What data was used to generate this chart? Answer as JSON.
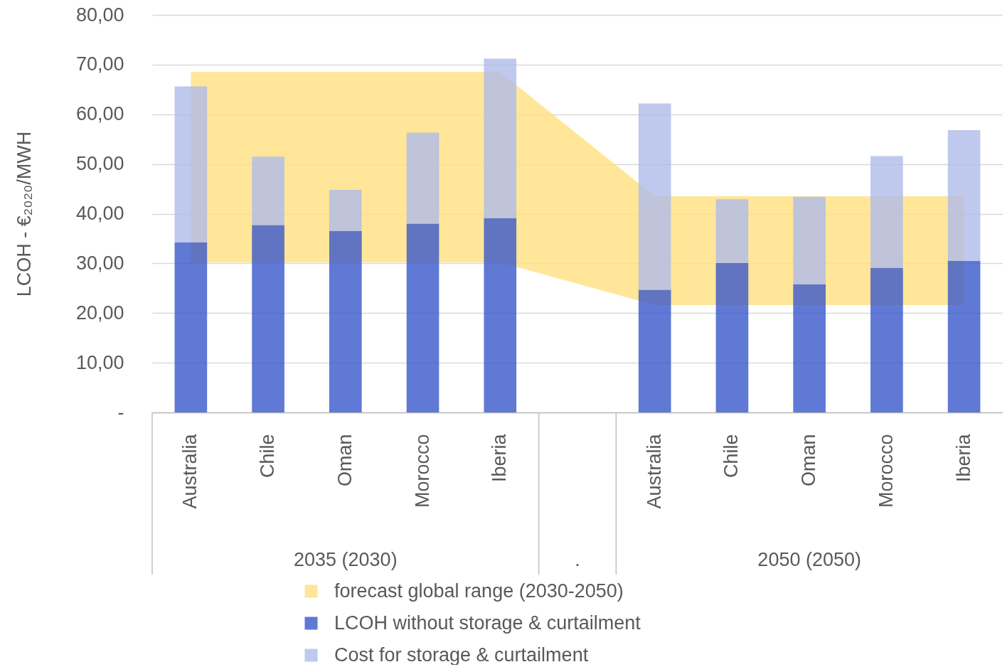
{
  "chart_data": {
    "type": "bar",
    "stacked": true,
    "ylabel": "LCOH - €₂₀₂₀/MWH",
    "categories": [
      "Australia",
      "Chile",
      "Oman",
      "Morocco",
      "Iberia",
      null,
      "Australia",
      "Chile",
      "Oman",
      "Morocco",
      "Iberia"
    ],
    "series": [
      {
        "name": "forecast global range (2030-2050)",
        "type": "area",
        "color": "#ffe699",
        "values": [
          null,
          null,
          null,
          null,
          null,
          null,
          null,
          null,
          null,
          null,
          null
        ],
        "lower": [
          30.2,
          30.2,
          30.2,
          30.2,
          30.2,
          25.9,
          21.6,
          21.6,
          21.6,
          21.6,
          21.6
        ],
        "upper": [
          68.5,
          68.5,
          68.5,
          68.5,
          68.5,
          56,
          43.5,
          43.5,
          43.5,
          43.5,
          43.5
        ]
      },
      {
        "name": "LCOH without storage & curtailment",
        "color": "#6079d5",
        "values": [
          34.2,
          37.7,
          36.5,
          38.0,
          39.1,
          null,
          24.7,
          30.1,
          25.8,
          29.1,
          30.5
        ]
      },
      {
        "name": "Cost for storage & curtailment",
        "color": "#bfc9ee",
        "values": [
          31.4,
          13.8,
          8.3,
          18.3,
          32.1,
          null,
          37.5,
          12.8,
          17.6,
          22.5,
          26.3
        ]
      }
    ],
    "ylim": [
      0,
      80
    ],
    "yticks": [
      {
        "value": 0,
        "label": "-"
      },
      {
        "value": 10,
        "label": "10,00"
      },
      {
        "value": 20,
        "label": "20,00"
      },
      {
        "value": 30,
        "label": "30,00"
      },
      {
        "value": 40,
        "label": "40,00"
      },
      {
        "value": 50,
        "label": "50,00"
      },
      {
        "value": 60,
        "label": "60,00"
      },
      {
        "value": 70,
        "label": "70,00"
      },
      {
        "value": 80,
        "label": "80,00"
      }
    ],
    "grid": "y",
    "legend": "bottom",
    "annotations": [
      "2035 (2030)",
      ".",
      "2050 (2050)"
    ]
  }
}
